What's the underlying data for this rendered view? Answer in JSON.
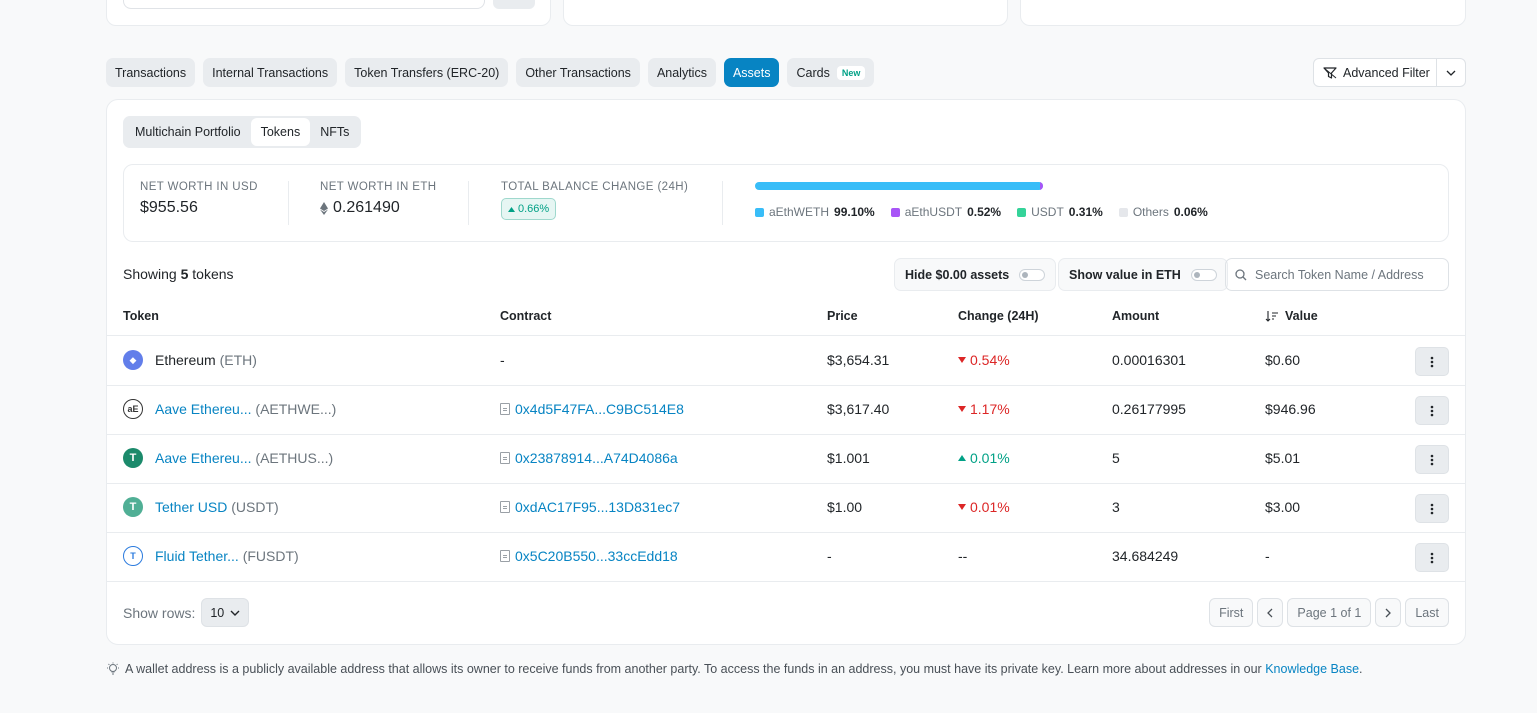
{
  "tabs": [
    {
      "label": "Transactions",
      "active": false
    },
    {
      "label": "Internal Transactions",
      "active": false
    },
    {
      "label": "Token Transfers (ERC-20)",
      "active": false
    },
    {
      "label": "Other Transactions",
      "active": false
    },
    {
      "label": "Analytics",
      "active": false
    },
    {
      "label": "Assets",
      "active": true
    },
    {
      "label": "Cards",
      "active": false
    }
  ],
  "cards_badge": "New",
  "advanced_filter": "Advanced Filter",
  "subtabs": [
    "Multichain Portfolio",
    "Tokens",
    "NFTs"
  ],
  "summary": {
    "usd_label": "NET WORTH IN USD",
    "usd_value": "$955.56",
    "eth_label": "NET WORTH IN ETH",
    "eth_value": "0.261490",
    "change_label": "TOTAL BALANCE CHANGE (24H)",
    "change_value": "0.66%"
  },
  "allocation": [
    {
      "name": "aEthWETH",
      "pct": "99.10%",
      "color": "#38bdf8"
    },
    {
      "name": "aEthUSDT",
      "pct": "0.52%",
      "color": "#a855f7"
    },
    {
      "name": "USDT",
      "pct": "0.31%",
      "color": "#34d399"
    },
    {
      "name": "Others",
      "pct": "0.06%",
      "color": "#e5e7eb"
    }
  ],
  "showing": {
    "prefix": "Showing",
    "count": "5",
    "suffix": "tokens"
  },
  "hide_zero": "Hide $0.00 assets",
  "show_eth": "Show value in ETH",
  "search_placeholder": "Search Token Name / Address",
  "columns": [
    "Token",
    "Contract",
    "Price",
    "Change (24H)",
    "Amount",
    "Value"
  ],
  "tokens": [
    {
      "name": "Ethereum",
      "symbol": "(ETH)",
      "contract": "-",
      "price": "$3,654.31",
      "change": "0.54%",
      "dir": "down",
      "amount": "0.00016301",
      "value": "$0.60",
      "icon_color": "#627eea",
      "icon_glyph": "◆"
    },
    {
      "name": "Aave Ethereu...",
      "symbol": "(AETHWE...)",
      "contract": "0x4d5F47FA...C9BC514E8",
      "price": "$3,617.40",
      "change": "1.17%",
      "dir": "down",
      "amount": "0.26177995",
      "value": "$946.96",
      "icon_color": "#ffffff",
      "icon_glyph": "aE"
    },
    {
      "name": "Aave Ethereu...",
      "symbol": "(AETHUS...)",
      "contract": "0x23878914...A74D4086a",
      "price": "$1.001",
      "change": "0.01%",
      "dir": "up",
      "amount": "5",
      "value": "$5.01",
      "icon_color": "#1b8a6b",
      "icon_glyph": "T"
    },
    {
      "name": "Tether USD",
      "symbol": "(USDT)",
      "contract": "0xdAC17F95...13D831ec7",
      "price": "$1.00",
      "change": "0.01%",
      "dir": "down",
      "amount": "3",
      "value": "$3.00",
      "icon_color": "#50af95",
      "icon_glyph": "T"
    },
    {
      "name": "Fluid Tether...",
      "symbol": "(FUSDT)",
      "contract": "0x5C20B550...33ccEdd18",
      "price": "-",
      "change": "--",
      "dir": "none",
      "amount": "34.684249",
      "value": "-",
      "icon_color": "#ffffff",
      "icon_glyph": "T"
    }
  ],
  "show_rows_label": "Show rows:",
  "rows_value": "10",
  "pagination": {
    "first": "First",
    "page": "Page 1 of 1",
    "last": "Last"
  },
  "footnote": {
    "text": "A wallet address is a publicly available address that allows its owner to receive funds from another party. To access the funds in an address, you must have its private key. Learn more about addresses in our",
    "link": "Knowledge Base",
    "end": "."
  }
}
